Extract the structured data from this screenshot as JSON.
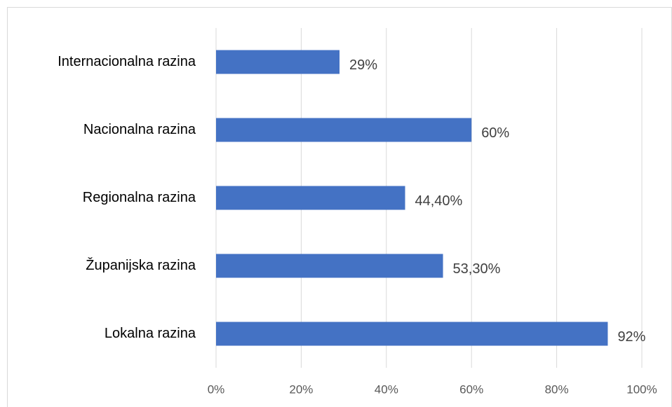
{
  "chart_data": {
    "type": "bar",
    "orientation": "horizontal",
    "categories": [
      "Internacionalna razina",
      "Nacionalna razina",
      "Regionalna razina",
      "Županijska razina",
      "Lokalna razina"
    ],
    "values": [
      29,
      60,
      44.4,
      53.3,
      92
    ],
    "value_labels": [
      "29%",
      "60%",
      "44,40%",
      "53,30%",
      "92%"
    ],
    "color": "#4472c4",
    "xlim": [
      0,
      100
    ],
    "xticks": [
      {
        "value": 0,
        "label": "0%"
      },
      {
        "value": 20,
        "label": "20%"
      },
      {
        "value": 40,
        "label": "40%"
      },
      {
        "value": 60,
        "label": "60%"
      },
      {
        "value": 80,
        "label": "80%"
      },
      {
        "value": 100,
        "label": "100%"
      }
    ],
    "grid": true
  }
}
